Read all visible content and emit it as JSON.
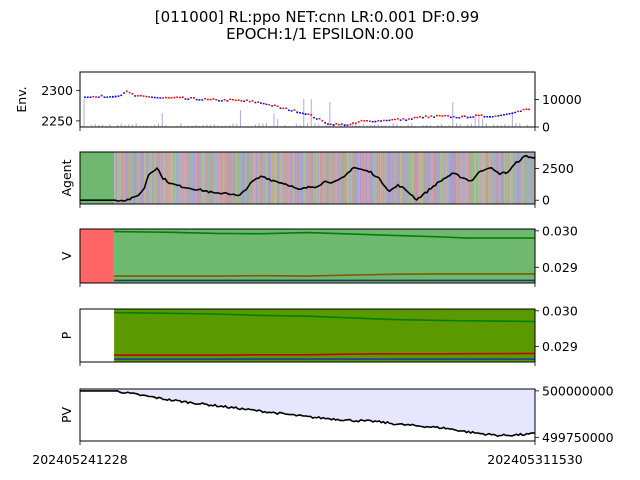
{
  "chart_data": {
    "type": "line",
    "title_line1": "[011000] RL:ppo NET:cnn LR:0.001 DF:0.99",
    "title_line2": "EPOCH:1/1 EPSILON:0.00",
    "x_tick_labels": [
      "202405241228",
      "202405311530"
    ],
    "colors": {
      "up": "#ff0000",
      "down": "#0000ff",
      "agent_line": "#000000",
      "v_red": "#ff6666",
      "v_green": "#6fb86f",
      "p_green": "#5a9a00",
      "pv_fill": "#e6e6ff",
      "dark_green": "#008000",
      "brown": "#7b5a00",
      "navy": "#1f3a5f",
      "red_line": "#cc0000",
      "blue_line": "#1f3aa0"
    },
    "panels": [
      {
        "id": "env",
        "ylabel": "Env.",
        "left_ticks": [
          "2300",
          "2250"
        ],
        "left_values": [
          2300,
          2250
        ],
        "left_ylim": [
          2240,
          2330
        ],
        "right_ticks": [
          "10000",
          "0"
        ],
        "right_values": [
          10000,
          0
        ],
        "right_ylim": [
          0,
          20000
        ],
        "series": [
          {
            "name": "price",
            "x": [
              0,
              0.05,
              0.08,
              0.09,
              0.1,
              0.12,
              0.15,
              0.18,
              0.2,
              0.25,
              0.3,
              0.35,
              0.4,
              0.45,
              0.5,
              0.52,
              0.55,
              0.6,
              0.62,
              0.65,
              0.7,
              0.72,
              0.75,
              0.8,
              0.85,
              0.88,
              0.9,
              0.92,
              0.95,
              1.0
            ],
            "y": [
              2290,
              2290,
              2292,
              2298,
              2296,
              2290,
              2290,
              2288,
              2288,
              2286,
              2284,
              2284,
              2280,
              2270,
              2262,
              2255,
              2245,
              2244,
              2250,
              2250,
              2253,
              2252,
              2256,
              2258,
              2256,
              2258,
              2258,
              2258,
              2262,
              2270
            ]
          }
        ]
      },
      {
        "id": "agent",
        "ylabel": "Agent",
        "right_ticks": [
          "2500",
          "0"
        ],
        "right_values": [
          2500,
          0
        ],
        "right_ylim": [
          -300,
          3800
        ],
        "series": [
          {
            "name": "agent_value",
            "x": [
              0,
              0.05,
              0.08,
              0.1,
              0.12,
              0.14,
              0.15,
              0.17,
              0.18,
              0.2,
              0.22,
              0.25,
              0.28,
              0.3,
              0.32,
              0.35,
              0.38,
              0.4,
              0.42,
              0.44,
              0.46,
              0.48,
              0.5,
              0.52,
              0.54,
              0.56,
              0.58,
              0.6,
              0.62,
              0.64,
              0.66,
              0.68,
              0.7,
              0.72,
              0.74,
              0.76,
              0.78,
              0.8,
              0.82,
              0.84,
              0.86,
              0.88,
              0.9,
              0.92,
              0.94,
              0.96,
              0.98,
              1.0
            ],
            "y": [
              0,
              0,
              0,
              0,
              200,
              800,
              2000,
              2600,
              1800,
              1300,
              1100,
              900,
              700,
              500,
              600,
              300,
              1500,
              1900,
              1600,
              1400,
              1200,
              800,
              1000,
              1100,
              1500,
              1400,
              1800,
              2600,
              2400,
              2200,
              1600,
              700,
              1200,
              700,
              50,
              600,
              1200,
              1700,
              2100,
              1800,
              1500,
              2300,
              2600,
              2100,
              2200,
              3000,
              3500,
              3300
            ]
          }
        ]
      },
      {
        "id": "v",
        "ylabel": "V",
        "right_ticks": [
          "0.030",
          "0.029"
        ],
        "right_values": [
          0.03,
          0.029
        ],
        "right_ylim": [
          0.02857,
          0.03005
        ],
        "series": [
          {
            "name": "v_top",
            "x": [
              0.075,
              0.2,
              0.3,
              0.4,
              0.5,
              0.6,
              0.7,
              0.8,
              0.85,
              1.0
            ],
            "y": [
              0.02998,
              0.02996,
              0.02993,
              0.02992,
              0.02995,
              0.02991,
              0.02987,
              0.02983,
              0.0298,
              0.0298
            ]
          },
          {
            "name": "v_mid",
            "x": [
              0.075,
              0.2,
              0.3,
              0.4,
              0.5,
              0.6,
              0.7,
              0.8,
              1.0
            ],
            "y": [
              0.02876,
              0.02876,
              0.02876,
              0.02877,
              0.02876,
              0.02879,
              0.02881,
              0.02882,
              0.02882
            ]
          },
          {
            "name": "v_bottom",
            "x": [
              0.075,
              1.0
            ],
            "y": [
              0.02864,
              0.02864
            ]
          }
        ]
      },
      {
        "id": "p",
        "ylabel": "P",
        "right_ticks": [
          "0.030",
          "0.029"
        ],
        "right_values": [
          0.03,
          0.029
        ],
        "right_ylim": [
          0.02857,
          0.03005
        ],
        "series": [
          {
            "name": "p_top",
            "x": [
              0.075,
              0.2,
              0.3,
              0.4,
              0.5,
              0.6,
              0.7,
              0.8,
              1.0
            ],
            "y": [
              0.02995,
              0.02993,
              0.02991,
              0.02987,
              0.02985,
              0.0298,
              0.02975,
              0.02973,
              0.0297
            ]
          },
          {
            "name": "p_red",
            "x": [
              0.075,
              0.2,
              0.3,
              0.4,
              0.5,
              0.6,
              0.7,
              0.8,
              1.0
            ],
            "y": [
              0.02876,
              0.02876,
              0.02876,
              0.02877,
              0.02877,
              0.02879,
              0.0288,
              0.0288,
              0.02881
            ]
          },
          {
            "name": "p_blue",
            "x": [
              0.075,
              1.0
            ],
            "y": [
              0.02865,
              0.02865
            ]
          }
        ]
      },
      {
        "id": "pv",
        "ylabel": "PV",
        "right_ticks": [
          "500000000",
          "499750000"
        ],
        "right_values": [
          500000000,
          499750000
        ],
        "right_ylim": [
          499730000,
          500010000
        ],
        "series": [
          {
            "name": "pv",
            "x": [
              0,
              0.05,
              0.08,
              0.1,
              0.15,
              0.2,
              0.25,
              0.3,
              0.35,
              0.4,
              0.45,
              0.5,
              0.55,
              0.6,
              0.65,
              0.7,
              0.75,
              0.8,
              0.85,
              0.88,
              0.9,
              0.92,
              0.95,
              0.98,
              1.0
            ],
            "y": [
              500000000,
              500000000,
              500000000,
              499990000,
              499970000,
              499950000,
              499935000,
              499920000,
              499905000,
              499890000,
              499875000,
              499860000,
              499850000,
              499840000,
              499835000,
              499820000,
              499810000,
              499800000,
              499780000,
              499770000,
              499765000,
              499760000,
              499762000,
              499765000,
              499770000
            ]
          }
        ]
      }
    ]
  }
}
